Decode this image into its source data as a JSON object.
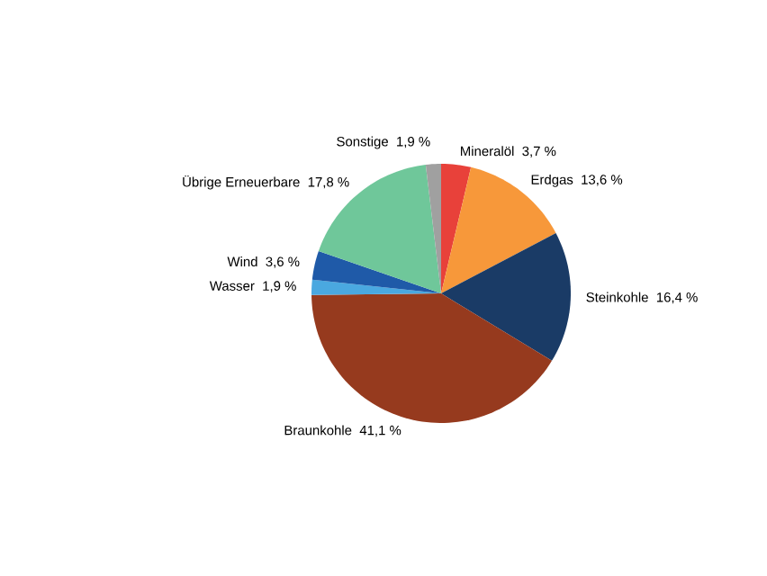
{
  "chart_data": {
    "type": "pie",
    "categories": [
      "Mineralöl",
      "Erdgas",
      "Steinkohle",
      "Braunkohle",
      "Wasser",
      "Wind",
      "Übrige Erneuerbare",
      "Sonstige"
    ],
    "values": [
      3.7,
      13.6,
      16.4,
      41.1,
      1.9,
      3.6,
      17.8,
      1.9
    ],
    "value_labels": [
      "3,7 %",
      "13,6 %",
      "16,4 %",
      "41,1 %",
      "1,9 %",
      "3,6 %",
      "17,8 %",
      "1,9 %"
    ],
    "colors": [
      "#e8413a",
      "#f7983a",
      "#1a3b66",
      "#963a1e",
      "#4aa8e0",
      "#1f5aa8",
      "#6fc79a",
      "#a0a0a0"
    ]
  }
}
